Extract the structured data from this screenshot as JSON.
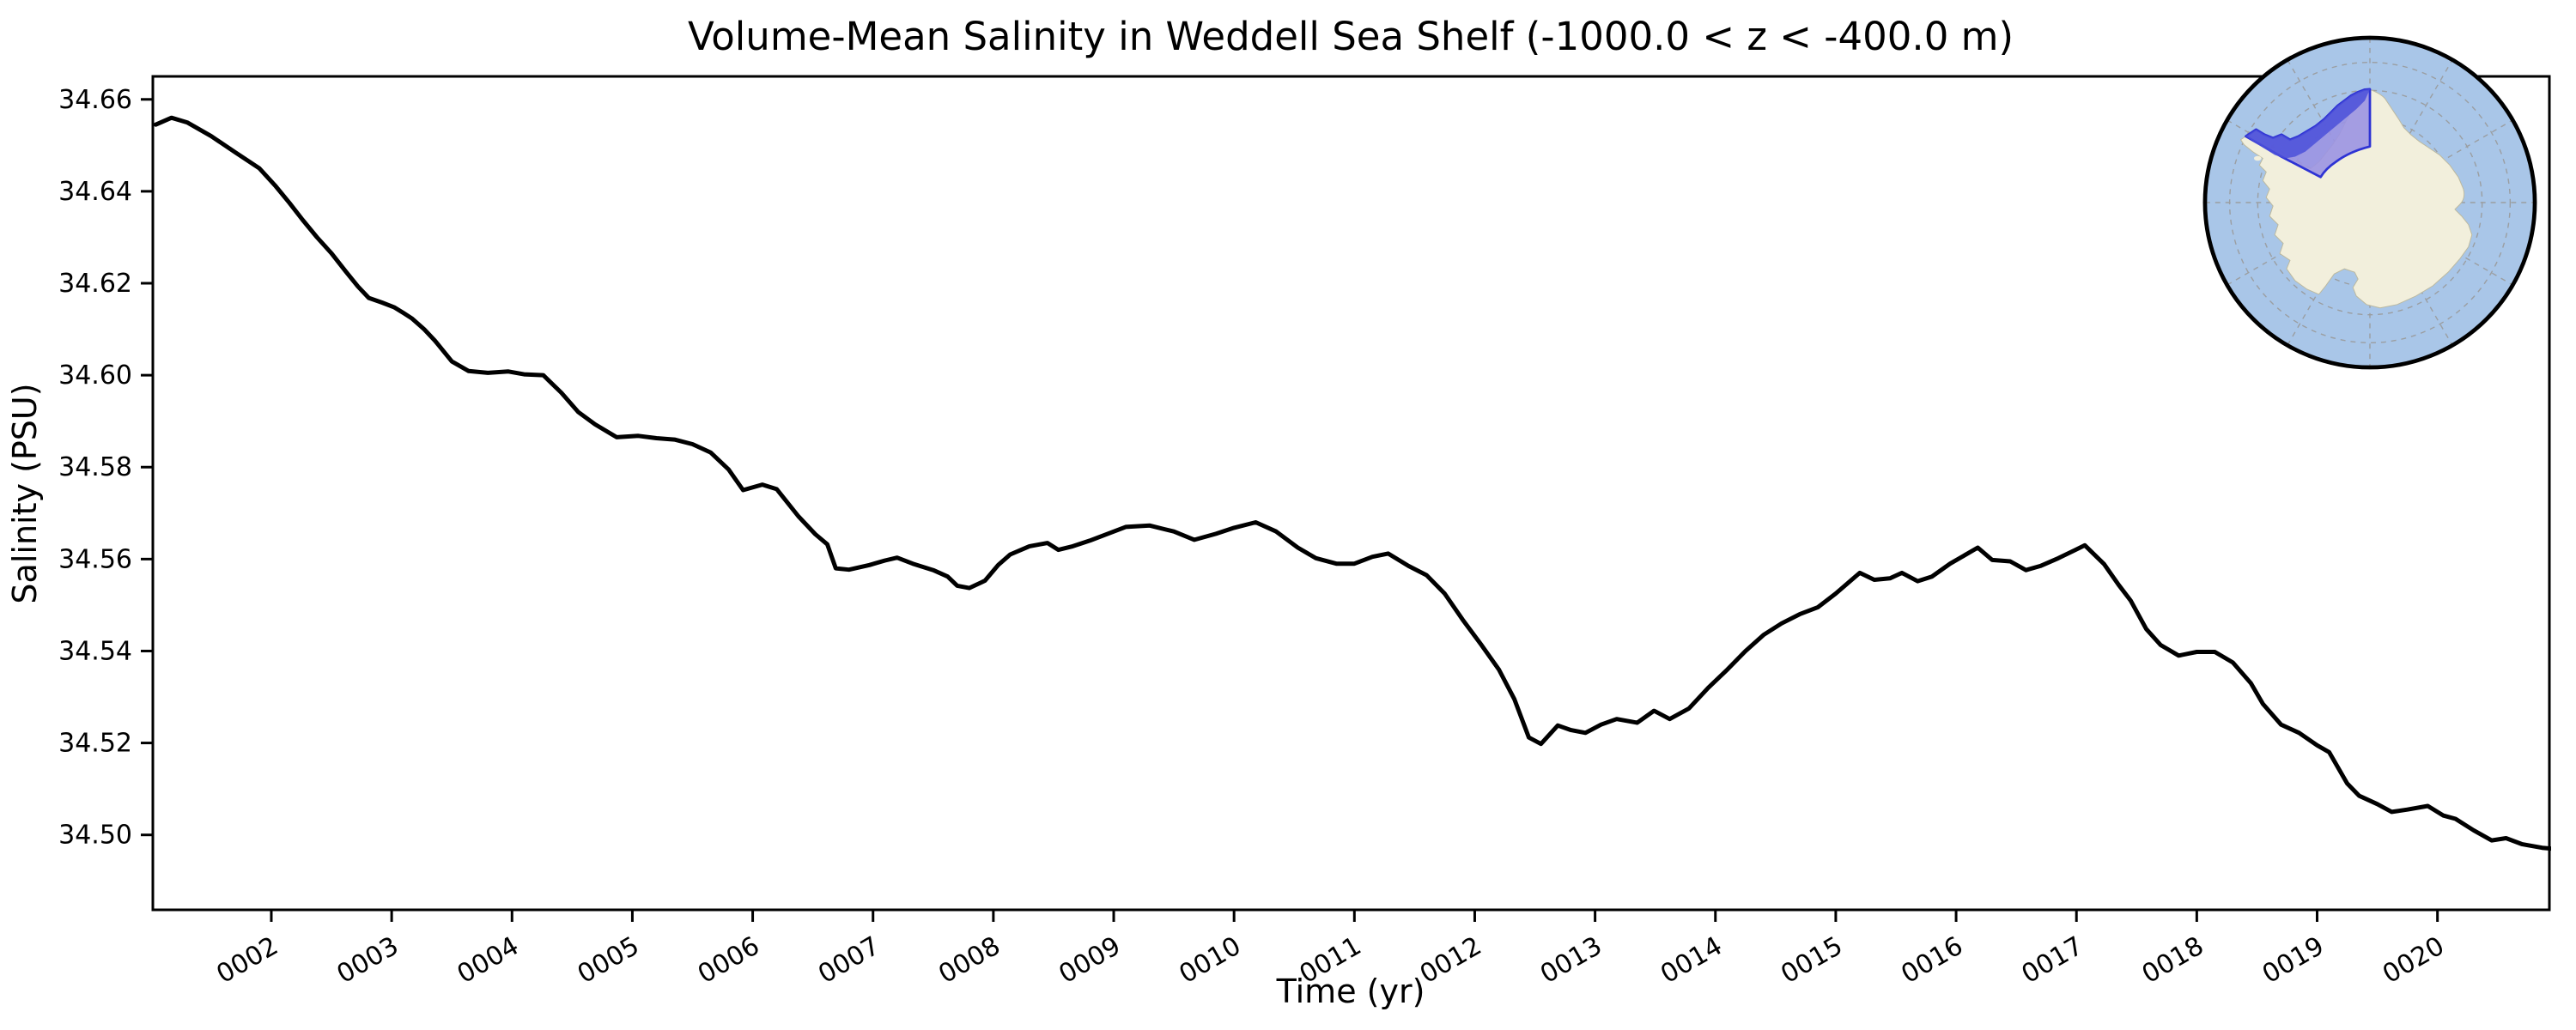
{
  "figure": {
    "title": "Volume-Mean Salinity in Weddell Sea Shelf (-1000.0 < z < -400.0 m)",
    "xlabel": "Time (yr)",
    "ylabel": "Salinity (PSU)",
    "background_color": "#ffffff",
    "line_color": "#000000"
  },
  "chart_data": {
    "type": "line",
    "title": "Volume-Mean Salinity in Weddell Sea Shelf (-1000.0 < z < -400.0 m)",
    "xlabel": "Time (yr)",
    "ylabel": "Salinity (PSU)",
    "grid": false,
    "legend": "none",
    "xlim": [
      1.0155,
      20.93
    ],
    "ylim": [
      34.4837,
      34.665
    ],
    "x_tick_values": [
      2,
      3,
      4,
      5,
      6,
      7,
      8,
      9,
      10,
      11,
      12,
      13,
      14,
      15,
      16,
      17,
      18,
      19,
      20
    ],
    "x_tick_labels": [
      "0002",
      "0003",
      "0004",
      "0005",
      "0006",
      "0007",
      "0008",
      "0009",
      "0010",
      "0011",
      "0012",
      "0013",
      "0014",
      "0015",
      "0016",
      "0017",
      "0018",
      "0019",
      "0020"
    ],
    "y_tick_values": [
      34.66,
      34.64,
      34.62,
      34.6,
      34.58,
      34.56,
      34.54,
      34.52,
      34.5
    ],
    "y_tick_labels": [
      "34.66",
      "34.64",
      "34.62",
      "34.60",
      "34.58",
      "34.56",
      "34.54",
      "34.52",
      "34.50"
    ],
    "series": [
      {
        "name": "volume-mean salinity",
        "color": "#000000",
        "x": [
          1.04,
          1.17,
          1.3,
          1.5,
          1.7,
          1.9,
          2.03,
          2.15,
          2.26,
          2.38,
          2.5,
          2.62,
          2.72,
          2.81,
          2.92,
          3.02,
          3.1,
          3.17,
          3.27,
          3.36,
          3.5,
          3.64,
          3.8,
          3.97,
          4.1,
          4.26,
          4.41,
          4.55,
          4.69,
          4.87,
          5.05,
          5.2,
          5.35,
          5.5,
          5.65,
          5.8,
          5.92,
          6.08,
          6.2,
          6.38,
          6.52,
          6.62,
          6.69,
          6.8,
          6.97,
          7.1,
          7.2,
          7.33,
          7.5,
          7.62,
          7.7,
          7.8,
          7.93,
          8.04,
          8.14,
          8.3,
          8.45,
          8.54,
          8.66,
          8.8,
          8.95,
          9.1,
          9.3,
          9.42,
          9.5,
          9.67,
          9.85,
          10.0,
          10.18,
          10.35,
          10.53,
          10.68,
          10.85,
          11.0,
          11.15,
          11.28,
          11.45,
          11.6,
          11.75,
          11.9,
          12.05,
          12.2,
          12.33,
          12.45,
          12.55,
          12.69,
          12.8,
          12.92,
          13.05,
          13.18,
          13.35,
          13.49,
          13.62,
          13.78,
          13.94,
          14.1,
          14.25,
          14.4,
          14.55,
          14.7,
          14.85,
          15.0,
          15.2,
          15.32,
          15.45,
          15.55,
          15.68,
          15.8,
          15.95,
          16.18,
          16.3,
          16.45,
          16.58,
          16.7,
          16.85,
          17.07,
          17.23,
          17.35,
          17.45,
          17.58,
          17.7,
          17.85,
          18.0,
          18.15,
          18.3,
          18.45,
          18.55,
          18.7,
          18.85,
          19.0,
          19.1,
          19.25,
          19.35,
          19.5,
          19.62,
          19.75,
          19.92,
          20.05,
          20.15,
          20.3,
          20.45,
          20.57,
          20.7,
          20.87,
          20.96
        ],
        "y": [
          34.6545,
          34.656,
          34.655,
          34.652,
          34.6485,
          34.645,
          34.6413,
          34.6375,
          34.6338,
          34.63,
          34.6265,
          34.6225,
          34.6193,
          34.6168,
          34.6158,
          34.6148,
          34.6135,
          34.6123,
          34.61,
          34.6075,
          34.603,
          34.6009,
          34.6005,
          34.6008,
          34.6002,
          34.6,
          34.5962,
          34.592,
          34.5893,
          34.5865,
          34.5868,
          34.5863,
          34.586,
          34.585,
          34.5832,
          34.5795,
          34.575,
          34.5762,
          34.5752,
          34.5693,
          34.5654,
          34.5632,
          34.558,
          34.5577,
          34.5587,
          34.5597,
          34.5603,
          34.559,
          34.5576,
          34.5562,
          34.5542,
          34.5537,
          34.5553,
          34.5587,
          34.561,
          34.5628,
          34.5635,
          34.562,
          34.5628,
          34.564,
          34.5655,
          34.567,
          34.5673,
          34.5665,
          34.566,
          34.5642,
          34.5655,
          34.5668,
          34.568,
          34.566,
          34.5625,
          34.5602,
          34.559,
          34.559,
          34.5605,
          34.5612,
          34.5585,
          34.5565,
          34.5525,
          34.5468,
          34.5415,
          34.536,
          34.5295,
          34.5212,
          34.5198,
          34.5238,
          34.5228,
          34.5222,
          34.524,
          34.5252,
          34.5244,
          34.527,
          34.5252,
          34.5275,
          34.532,
          34.536,
          34.54,
          34.5435,
          34.546,
          34.548,
          34.5495,
          34.5525,
          34.557,
          34.5555,
          34.5558,
          34.557,
          34.5552,
          34.5562,
          34.559,
          34.5625,
          34.5598,
          34.5595,
          34.5576,
          34.5585,
          34.5602,
          34.563,
          34.5589,
          34.5544,
          34.551,
          34.5448,
          34.5413,
          34.539,
          34.5398,
          34.5398,
          34.5375,
          34.533,
          34.5285,
          34.524,
          34.5222,
          34.5195,
          34.518,
          34.5112,
          34.5085,
          34.5067,
          34.505,
          34.5055,
          34.5063,
          34.5042,
          34.5035,
          34.501,
          34.4988,
          34.4993,
          34.498,
          34.4972,
          34.497
        ]
      }
    ]
  },
  "inset_map": {
    "name": "antarctica-polar-inset",
    "ocean_color": "#a9c6e8",
    "land_color": "#f2efdc",
    "coast_color": "#bcb99f",
    "graticule_color": "#999999",
    "border_color": "#000000",
    "highlight_region": "Weddell Sea Shelf",
    "region_sea_fill": "#4b50d9",
    "region_land_fill": "#9b94e2",
    "region_outline": "#2e33d4"
  }
}
